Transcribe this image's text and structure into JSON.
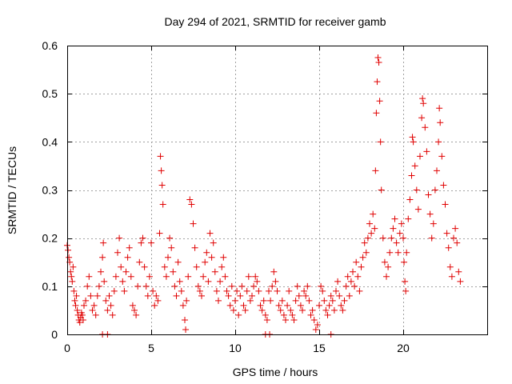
{
  "chart_data": {
    "type": "scatter",
    "title": "Day 294 of 2021, SRMTID for receiver gamb",
    "xlabel": "GPS time / hours",
    "ylabel": "SRMTID / TECUs",
    "xlim": [
      0,
      25
    ],
    "ylim": [
      0,
      0.6
    ],
    "x_ticks": [
      0,
      5,
      10,
      15,
      20
    ],
    "y_ticks": [
      0,
      0.1,
      0.2,
      0.3,
      0.4,
      0.5,
      0.6
    ],
    "grid": true,
    "marker": "+",
    "color": "#e00000",
    "points": [
      [
        0.0,
        0.185
      ],
      [
        0.05,
        0.175
      ],
      [
        0.1,
        0.16
      ],
      [
        0.15,
        0.15
      ],
      [
        0.2,
        0.13
      ],
      [
        0.25,
        0.12
      ],
      [
        0.3,
        0.11
      ],
      [
        0.35,
        0.14
      ],
      [
        0.4,
        0.09
      ],
      [
        0.45,
        0.07
      ],
      [
        0.5,
        0.06
      ],
      [
        0.55,
        0.08
      ],
      [
        0.6,
        0.05
      ],
      [
        0.65,
        0.04
      ],
      [
        0.7,
        0.03
      ],
      [
        0.75,
        0.025
      ],
      [
        0.8,
        0.035
      ],
      [
        0.85,
        0.045
      ],
      [
        0.9,
        0.04
      ],
      [
        0.95,
        0.03
      ],
      [
        1.0,
        0.06
      ],
      [
        1.1,
        0.07
      ],
      [
        1.2,
        0.1
      ],
      [
        1.3,
        0.12
      ],
      [
        1.4,
        0.08
      ],
      [
        1.5,
        0.05
      ],
      [
        1.6,
        0.06
      ],
      [
        1.7,
        0.04
      ],
      [
        1.8,
        0.08
      ],
      [
        1.9,
        0.1
      ],
      [
        2.0,
        0.13
      ],
      [
        2.1,
        0.16
      ],
      [
        2.15,
        0.19
      ],
      [
        2.2,
        0.11
      ],
      [
        2.3,
        0.07
      ],
      [
        2.4,
        0.05
      ],
      [
        2.5,
        0.08
      ],
      [
        2.6,
        0.06
      ],
      [
        2.7,
        0.04
      ],
      [
        2.8,
        0.09
      ],
      [
        2.9,
        0.12
      ],
      [
        3.0,
        0.17
      ],
      [
        3.1,
        0.2
      ],
      [
        3.2,
        0.14
      ],
      [
        3.3,
        0.11
      ],
      [
        3.4,
        0.09
      ],
      [
        3.5,
        0.13
      ],
      [
        3.6,
        0.16
      ],
      [
        3.7,
        0.18
      ],
      [
        3.8,
        0.12
      ],
      [
        3.9,
        0.06
      ],
      [
        4.0,
        0.05
      ],
      [
        4.1,
        0.04
      ],
      [
        4.2,
        0.1
      ],
      [
        4.3,
        0.15
      ],
      [
        4.4,
        0.19
      ],
      [
        4.5,
        0.2
      ],
      [
        4.6,
        0.14
      ],
      [
        4.7,
        0.1
      ],
      [
        4.8,
        0.08
      ],
      [
        4.9,
        0.12
      ],
      [
        5.0,
        0.19
      ],
      [
        5.1,
        0.09
      ],
      [
        5.2,
        0.06
      ],
      [
        5.3,
        0.08
      ],
      [
        5.4,
        0.07
      ],
      [
        5.5,
        0.21
      ],
      [
        5.55,
        0.37
      ],
      [
        5.6,
        0.34
      ],
      [
        5.65,
        0.31
      ],
      [
        5.7,
        0.27
      ],
      [
        5.8,
        0.14
      ],
      [
        5.9,
        0.12
      ],
      [
        6.0,
        0.16
      ],
      [
        6.1,
        0.2
      ],
      [
        6.2,
        0.18
      ],
      [
        6.3,
        0.13
      ],
      [
        6.4,
        0.1
      ],
      [
        6.5,
        0.08
      ],
      [
        6.6,
        0.15
      ],
      [
        6.7,
        0.11
      ],
      [
        6.8,
        0.09
      ],
      [
        6.9,
        0.06
      ],
      [
        7.0,
        0.03
      ],
      [
        7.05,
        0.01
      ],
      [
        7.1,
        0.07
      ],
      [
        7.2,
        0.12
      ],
      [
        7.3,
        0.28
      ],
      [
        7.4,
        0.27
      ],
      [
        7.5,
        0.23
      ],
      [
        7.6,
        0.18
      ],
      [
        7.7,
        0.14
      ],
      [
        7.8,
        0.1
      ],
      [
        7.9,
        0.09
      ],
      [
        8.0,
        0.08
      ],
      [
        8.1,
        0.12
      ],
      [
        8.2,
        0.15
      ],
      [
        8.3,
        0.17
      ],
      [
        8.4,
        0.11
      ],
      [
        8.5,
        0.21
      ],
      [
        8.6,
        0.16
      ],
      [
        8.7,
        0.19
      ],
      [
        8.8,
        0.13
      ],
      [
        8.9,
        0.09
      ],
      [
        9.0,
        0.07
      ],
      [
        9.1,
        0.11
      ],
      [
        9.2,
        0.14
      ],
      [
        9.3,
        0.16
      ],
      [
        9.4,
        0.12
      ],
      [
        9.5,
        0.09
      ],
      [
        9.6,
        0.08
      ],
      [
        9.7,
        0.06
      ],
      [
        9.8,
        0.1
      ],
      [
        9.9,
        0.05
      ],
      [
        10.0,
        0.07
      ],
      [
        10.1,
        0.09
      ],
      [
        10.2,
        0.04
      ],
      [
        10.3,
        0.08
      ],
      [
        10.4,
        0.1
      ],
      [
        10.5,
        0.06
      ],
      [
        10.6,
        0.05
      ],
      [
        10.7,
        0.09
      ],
      [
        10.8,
        0.12
      ],
      [
        10.9,
        0.07
      ],
      [
        11.0,
        0.08
      ],
      [
        11.1,
        0.1
      ],
      [
        11.2,
        0.12
      ],
      [
        11.3,
        0.11
      ],
      [
        11.4,
        0.09
      ],
      [
        11.5,
        0.06
      ],
      [
        11.6,
        0.05
      ],
      [
        11.7,
        0.07
      ],
      [
        11.8,
        0.04
      ],
      [
        11.9,
        0.03
      ],
      [
        12.0,
        0.09
      ],
      [
        12.1,
        0.07
      ],
      [
        12.2,
        0.1
      ],
      [
        12.3,
        0.13
      ],
      [
        12.4,
        0.11
      ],
      [
        12.5,
        0.09
      ],
      [
        12.6,
        0.06
      ],
      [
        12.7,
        0.05
      ],
      [
        12.8,
        0.07
      ],
      [
        12.9,
        0.04
      ],
      [
        13.0,
        0.03
      ],
      [
        13.1,
        0.06
      ],
      [
        13.2,
        0.09
      ],
      [
        13.3,
        0.05
      ],
      [
        13.4,
        0.04
      ],
      [
        13.5,
        0.03
      ],
      [
        13.6,
        0.07
      ],
      [
        13.7,
        0.1
      ],
      [
        13.8,
        0.08
      ],
      [
        13.9,
        0.06
      ],
      [
        14.0,
        0.05
      ],
      [
        14.1,
        0.09
      ],
      [
        14.2,
        0.08
      ],
      [
        14.3,
        0.1
      ],
      [
        14.4,
        0.07
      ],
      [
        14.5,
        0.04
      ],
      [
        14.6,
        0.05
      ],
      [
        14.7,
        0.03
      ],
      [
        14.8,
        0.01
      ],
      [
        14.9,
        0.02
      ],
      [
        15.0,
        0.06
      ],
      [
        15.1,
        0.1
      ],
      [
        15.2,
        0.09
      ],
      [
        15.3,
        0.07
      ],
      [
        15.4,
        0.05
      ],
      [
        15.5,
        0.04
      ],
      [
        15.6,
        0.06
      ],
      [
        15.7,
        0.08
      ],
      [
        15.8,
        0.07
      ],
      [
        15.9,
        0.05
      ],
      [
        16.0,
        0.09
      ],
      [
        16.1,
        0.11
      ],
      [
        16.2,
        0.08
      ],
      [
        16.3,
        0.06
      ],
      [
        16.4,
        0.05
      ],
      [
        16.5,
        0.07
      ],
      [
        16.6,
        0.1
      ],
      [
        16.7,
        0.12
      ],
      [
        16.8,
        0.08
      ],
      [
        16.9,
        0.11
      ],
      [
        17.0,
        0.13
      ],
      [
        17.1,
        0.1
      ],
      [
        17.2,
        0.15
      ],
      [
        17.3,
        0.12
      ],
      [
        17.4,
        0.09
      ],
      [
        17.5,
        0.14
      ],
      [
        17.6,
        0.16
      ],
      [
        17.7,
        0.19
      ],
      [
        17.8,
        0.17
      ],
      [
        17.9,
        0.2
      ],
      [
        18.0,
        0.23
      ],
      [
        18.1,
        0.21
      ],
      [
        18.2,
        0.25
      ],
      [
        18.3,
        0.22
      ],
      [
        18.35,
        0.34
      ],
      [
        18.4,
        0.46
      ],
      [
        18.45,
        0.525
      ],
      [
        18.5,
        0.575
      ],
      [
        18.55,
        0.565
      ],
      [
        18.6,
        0.485
      ],
      [
        18.65,
        0.4
      ],
      [
        18.7,
        0.3
      ],
      [
        18.8,
        0.2
      ],
      [
        18.9,
        0.15
      ],
      [
        19.0,
        0.12
      ],
      [
        19.1,
        0.14
      ],
      [
        19.2,
        0.17
      ],
      [
        19.3,
        0.2
      ],
      [
        19.4,
        0.22
      ],
      [
        19.5,
        0.24
      ],
      [
        19.6,
        0.19
      ],
      [
        19.7,
        0.17
      ],
      [
        19.8,
        0.21
      ],
      [
        19.9,
        0.23
      ],
      [
        20.0,
        0.2
      ],
      [
        20.05,
        0.15
      ],
      [
        20.1,
        0.11
      ],
      [
        20.15,
        0.09
      ],
      [
        20.2,
        0.17
      ],
      [
        20.3,
        0.24
      ],
      [
        20.4,
        0.28
      ],
      [
        20.5,
        0.33
      ],
      [
        20.55,
        0.41
      ],
      [
        20.6,
        0.4
      ],
      [
        20.7,
        0.35
      ],
      [
        20.8,
        0.3
      ],
      [
        20.9,
        0.26
      ],
      [
        21.0,
        0.37
      ],
      [
        21.1,
        0.45
      ],
      [
        21.15,
        0.49
      ],
      [
        21.2,
        0.48
      ],
      [
        21.3,
        0.43
      ],
      [
        21.4,
        0.38
      ],
      [
        21.5,
        0.29
      ],
      [
        21.6,
        0.25
      ],
      [
        21.7,
        0.2
      ],
      [
        21.8,
        0.23
      ],
      [
        21.9,
        0.3
      ],
      [
        22.0,
        0.34
      ],
      [
        22.1,
        0.4
      ],
      [
        22.15,
        0.47
      ],
      [
        22.2,
        0.44
      ],
      [
        22.3,
        0.37
      ],
      [
        22.4,
        0.31
      ],
      [
        22.5,
        0.27
      ],
      [
        22.6,
        0.21
      ],
      [
        22.7,
        0.18
      ],
      [
        22.8,
        0.14
      ],
      [
        22.9,
        0.12
      ],
      [
        23.0,
        0.2
      ],
      [
        23.1,
        0.22
      ],
      [
        23.2,
        0.19
      ],
      [
        23.3,
        0.13
      ],
      [
        23.4,
        0.11
      ],
      [
        2.1,
        0.0
      ],
      [
        2.4,
        0.0
      ],
      [
        11.8,
        0.0
      ],
      [
        12.05,
        0.0
      ],
      [
        15.7,
        0.0
      ]
    ]
  }
}
